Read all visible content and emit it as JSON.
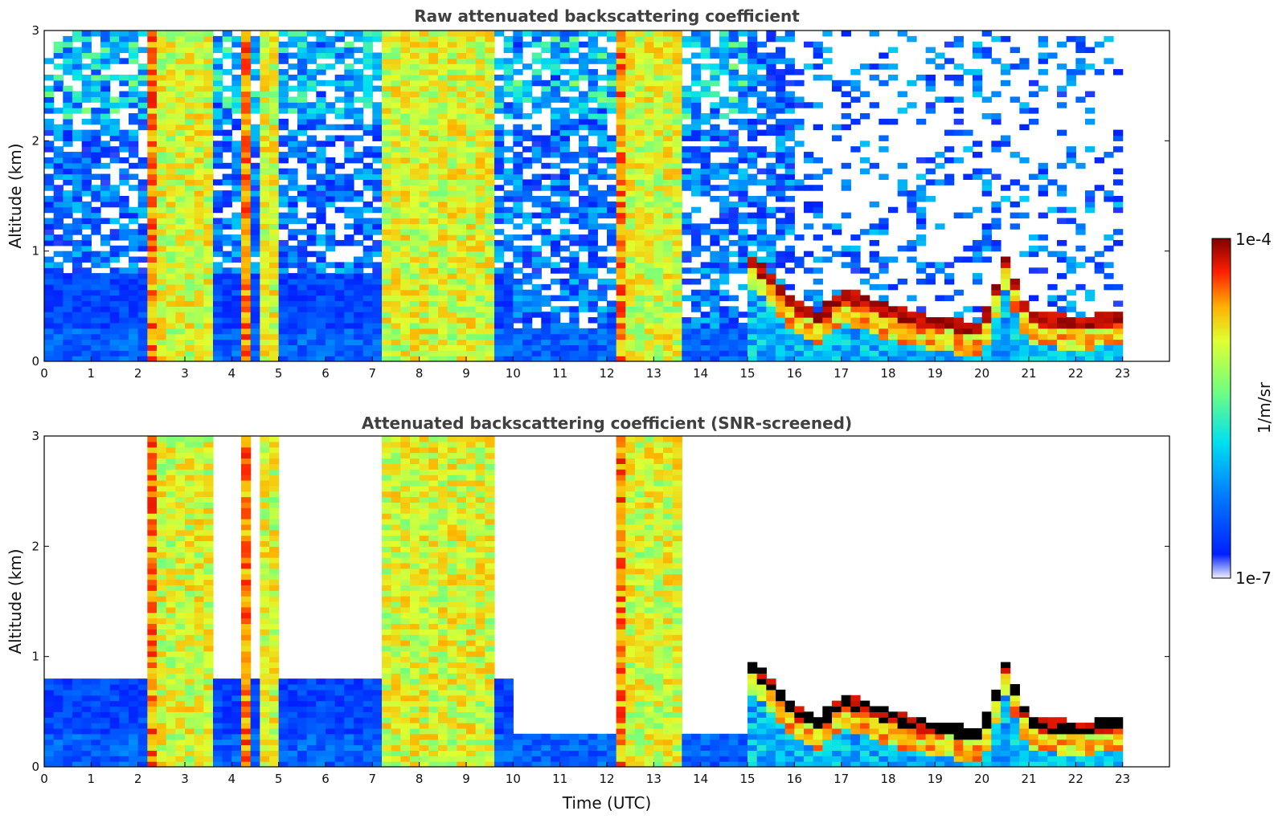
{
  "chart_data": [
    {
      "type": "heatmap",
      "title": "Raw attenuated backscattering coefficient",
      "xlabel": "",
      "ylabel": "Altitude (km)",
      "xlim": [
        0,
        24
      ],
      "ylim": [
        0,
        3
      ],
      "xticks": [
        0,
        1,
        2,
        3,
        4,
        5,
        6,
        7,
        8,
        9,
        10,
        11,
        12,
        13,
        14,
        15,
        16,
        17,
        18,
        19,
        20,
        21,
        22,
        23
      ],
      "yticks": [
        0,
        1,
        2,
        3
      ],
      "data_end_hour": 23,
      "screened": false,
      "features": {
        "aerosol_layer_top_km": [
          {
            "hour": 15.0,
            "value": 0.95
          },
          {
            "hour": 15.5,
            "value": 0.75
          },
          {
            "hour": 16.0,
            "value": 0.5
          },
          {
            "hour": 16.5,
            "value": 0.4
          },
          {
            "hour": 17.0,
            "value": 0.6
          },
          {
            "hour": 17.5,
            "value": 0.55
          },
          {
            "hour": 18.0,
            "value": 0.45
          },
          {
            "hour": 19.0,
            "value": 0.35
          },
          {
            "hour": 20.0,
            "value": 0.3
          },
          {
            "hour": 20.5,
            "value": 0.9
          },
          {
            "hour": 21.0,
            "value": 0.4
          },
          {
            "hour": 22.0,
            "value": 0.35
          },
          {
            "hour": 23.0,
            "value": 0.4
          }
        ],
        "precipitation_columns_hours": [
          2.3,
          2.6,
          3.0,
          3.4,
          4.3,
          4.8,
          7.4,
          7.8,
          8.2,
          8.6,
          9.0,
          9.4,
          12.3,
          12.6,
          13.0,
          13.4
        ]
      }
    },
    {
      "type": "heatmap",
      "title": "Attenuated backscattering coefficient (SNR-screened)",
      "xlabel": "Time (UTC)",
      "ylabel": "Altitude (km)",
      "xlim": [
        0,
        24
      ],
      "ylim": [
        0,
        3
      ],
      "xticks": [
        0,
        1,
        2,
        3,
        4,
        5,
        6,
        7,
        8,
        9,
        10,
        11,
        12,
        13,
        14,
        15,
        16,
        17,
        18,
        19,
        20,
        21,
        22,
        23
      ],
      "yticks": [
        0,
        1,
        2,
        3
      ],
      "data_end_hour": 23,
      "screened": true
    }
  ],
  "colorbar": {
    "label": "1/m/sr",
    "max_label": "1e-4",
    "min_label": "1e-7",
    "scale": "log",
    "colormap": "jet",
    "colors": [
      "#f0f0ff",
      "#0020ff",
      "#0080ff",
      "#00e0f0",
      "#70ff80",
      "#e0ff30",
      "#ffb000",
      "#ff2000",
      "#800000"
    ]
  }
}
